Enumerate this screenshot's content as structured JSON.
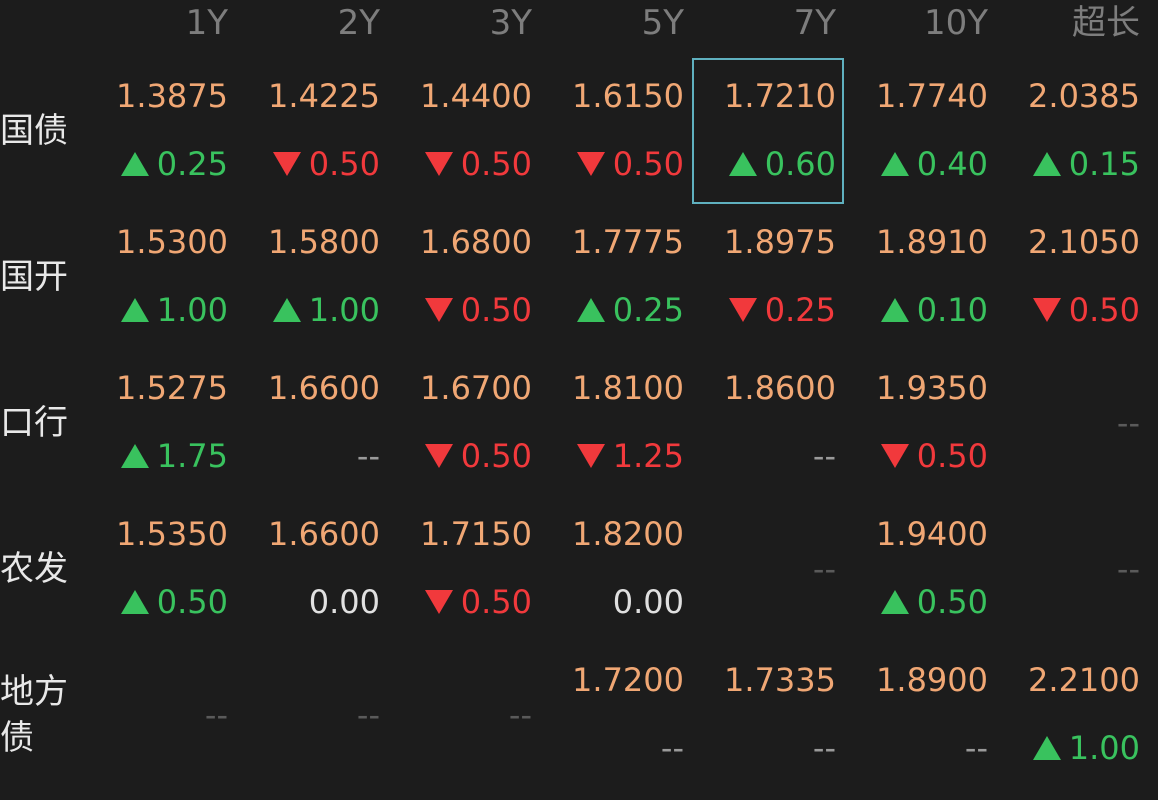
{
  "columns": [
    "1Y",
    "2Y",
    "3Y",
    "5Y",
    "7Y",
    "10Y",
    "超长"
  ],
  "rows": [
    {
      "label": "国债",
      "cells": [
        {
          "price": "1.3875",
          "change": "0.25",
          "dir": "up"
        },
        {
          "price": "1.4225",
          "change": "0.50",
          "dir": "down"
        },
        {
          "price": "1.4400",
          "change": "0.50",
          "dir": "down"
        },
        {
          "price": "1.6150",
          "change": "0.50",
          "dir": "down"
        },
        {
          "price": "1.7210",
          "change": "0.60",
          "dir": "up",
          "selected": true
        },
        {
          "price": "1.7740",
          "change": "0.40",
          "dir": "up"
        },
        {
          "price": "2.0385",
          "change": "0.15",
          "dir": "up"
        }
      ]
    },
    {
      "label": "国开",
      "cells": [
        {
          "price": "1.5300",
          "change": "1.00",
          "dir": "up"
        },
        {
          "price": "1.5800",
          "change": "1.00",
          "dir": "up"
        },
        {
          "price": "1.6800",
          "change": "0.50",
          "dir": "down"
        },
        {
          "price": "1.7775",
          "change": "0.25",
          "dir": "up"
        },
        {
          "price": "1.8975",
          "change": "0.25",
          "dir": "down"
        },
        {
          "price": "1.8910",
          "change": "0.10",
          "dir": "up"
        },
        {
          "price": "2.1050",
          "change": "0.50",
          "dir": "down"
        }
      ]
    },
    {
      "label": "口行",
      "cells": [
        {
          "price": "1.5275",
          "change": "1.75",
          "dir": "up"
        },
        {
          "price": "1.6600",
          "change": "--",
          "dir": "none"
        },
        {
          "price": "1.6700",
          "change": "0.50",
          "dir": "down"
        },
        {
          "price": "1.8100",
          "change": "1.25",
          "dir": "down"
        },
        {
          "price": "1.8600",
          "change": "--",
          "dir": "none"
        },
        {
          "price": "1.9350",
          "change": "0.50",
          "dir": "down"
        },
        {
          "empty": "--"
        }
      ]
    },
    {
      "label": "农发",
      "cells": [
        {
          "price": "1.5350",
          "change": "0.50",
          "dir": "up"
        },
        {
          "price": "1.6600",
          "change": "0.00",
          "dir": "flat"
        },
        {
          "price": "1.7150",
          "change": "0.50",
          "dir": "down"
        },
        {
          "price": "1.8200",
          "change": "0.00",
          "dir": "flat"
        },
        {
          "empty": "--"
        },
        {
          "price": "1.9400",
          "change": "0.50",
          "dir": "up"
        },
        {
          "empty": "--"
        }
      ]
    },
    {
      "label": "地方\n债",
      "cells": [
        {
          "empty": "--"
        },
        {
          "empty": "--"
        },
        {
          "empty": "--"
        },
        {
          "price": "1.7200",
          "change": "--",
          "dir": "none"
        },
        {
          "price": "1.7335",
          "change": "--",
          "dir": "none"
        },
        {
          "price": "1.8900",
          "change": "--",
          "dir": "none"
        },
        {
          "price": "2.2100",
          "change": "1.00",
          "dir": "up"
        }
      ]
    }
  ],
  "colors": {
    "background": "#1c1c1c",
    "price": "#f0a774",
    "up": "#39c25e",
    "down": "#f1393c",
    "flat": "#e0e0e0",
    "header": "#7d7d7d",
    "selection": "#5fb0bf"
  }
}
